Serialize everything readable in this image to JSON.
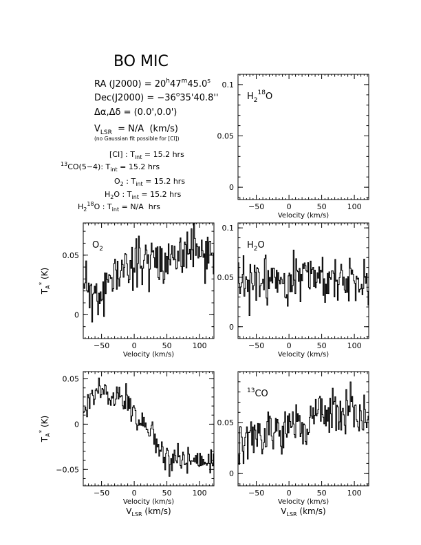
{
  "header": {
    "object_name": "BO MIC",
    "ra_prefix": "RA (J2000) = ",
    "ra_h": "20",
    "ra_m": "47",
    "ra_s": "45.0",
    "dec_prefix": "Dec(J2000) = ",
    "dec_d": "−36",
    "dec_m": "35",
    "dec_s": "40.8",
    "offset_label": "Δα,Δδ = ",
    "offset_value": "(0.0',0.0')",
    "vlsr_value": "= N/A  (km/s)",
    "gauss_note": "(no Gaussian fit possible for [CI])"
  },
  "integration_times": {
    "ci_label": "[CI]",
    "co_label": "CO(5−4):",
    "co_sup": "13",
    "o2_label": "O",
    "o2_sub": "2",
    "h2o_label": "H",
    "h2o_sub": "2",
    "h2o_tail": "O",
    "h218o_label": "H",
    "h218o_sub": "2",
    "h218o_sup": "18",
    "h218o_tail": "O",
    "ci_value": "15.2 hrs",
    "co_value": "15.2 hrs",
    "o2_value": "15.2 hrs",
    "h2o_value": "15.2 hrs",
    "h218o_value": "N/A  hrs"
  },
  "labels": {
    "velocity_xlabel": "Velocity (km/s)",
    "vlsr_xlabel": "(km/s)",
    "ylabel_unit": "(K)"
  },
  "chart_data": [
    {
      "id": "h218o",
      "type": "line",
      "label": "H",
      "label_sub": "2",
      "label_sup": "18",
      "label_tail": "O",
      "xlim": [
        -78,
        122
      ],
      "ylim": [
        -0.012,
        0.11
      ],
      "xticks": [
        -50,
        0,
        50,
        100
      ],
      "yticks": [
        0,
        0.05,
        0.1
      ],
      "ytick_labels": [
        "0",
        "0.05",
        "0.1"
      ],
      "xlabel": "Velocity (km/s)",
      "ylabel": "",
      "second_xlabel": "",
      "seed": 0,
      "x": [],
      "values": []
    },
    {
      "id": "o2",
      "type": "line",
      "label": "O",
      "label_sub": "2",
      "xlim": [
        -78,
        122
      ],
      "ylim": [
        -0.02,
        0.077
      ],
      "xticks": [
        -50,
        0,
        50,
        100
      ],
      "yticks": [
        0,
        0.05
      ],
      "ytick_labels": [
        "0",
        "0.05"
      ],
      "xlabel": "Velocity (km/s)",
      "ylabel": "(K)",
      "second_xlabel": "",
      "seed": 11,
      "x": [
        -78,
        -70,
        -62,
        -55,
        -48,
        -40,
        -30,
        -20,
        -10,
        0,
        10,
        20,
        30,
        40,
        50,
        60,
        70,
        80,
        90,
        100,
        110,
        122
      ],
      "values": [
        0.03,
        0.022,
        0.01,
        0.012,
        0.02,
        0.026,
        0.034,
        0.038,
        0.04,
        0.044,
        0.046,
        0.048,
        0.046,
        0.044,
        0.047,
        0.05,
        0.049,
        0.051,
        0.05,
        0.052,
        0.051,
        0.052
      ],
      "noise": 0.013
    },
    {
      "id": "h2o",
      "type": "line",
      "label": "H",
      "label_sub": "2",
      "label_tail": "O",
      "xlim": [
        -78,
        122
      ],
      "ylim": [
        -0.012,
        0.105
      ],
      "xticks": [
        -50,
        0,
        50,
        100
      ],
      "yticks": [
        0,
        0.05,
        0.1
      ],
      "ytick_labels": [
        "0",
        "0.05",
        "0.1"
      ],
      "xlabel": "Velocity (km/s)",
      "ylabel": "",
      "second_xlabel": "",
      "seed": 23,
      "x": [
        -78,
        -50,
        -20,
        0,
        30,
        60,
        90,
        122
      ],
      "values": [
        0.04,
        0.044,
        0.05,
        0.052,
        0.05,
        0.05,
        0.048,
        0.046
      ],
      "noise": 0.016
    },
    {
      "id": "ci",
      "type": "line",
      "label": "",
      "xlim": [
        -78,
        122
      ],
      "ylim": [
        -0.068,
        0.058
      ],
      "xticks": [
        -50,
        0,
        50,
        100
      ],
      "yticks": [
        -0.05,
        0,
        0.05
      ],
      "ytick_labels": [
        "−0.05",
        "0",
        "0.05"
      ],
      "xlabel": "Velocity (km/s)",
      "ylabel": "(K)",
      "second_xlabel": "(km/s)",
      "seed": 37,
      "x": [
        -78,
        -65,
        -55,
        -45,
        -35,
        -25,
        -15,
        -5,
        5,
        15,
        25,
        35,
        45,
        55,
        65,
        75,
        85,
        95,
        105,
        115,
        122
      ],
      "values": [
        0.0,
        0.03,
        0.04,
        0.035,
        0.032,
        0.03,
        0.028,
        0.02,
        0.005,
        0.0,
        -0.01,
        -0.02,
        -0.03,
        -0.04,
        -0.04,
        -0.042,
        -0.04,
        -0.04,
        -0.042,
        -0.04,
        -0.04
      ],
      "noise": 0.01
    },
    {
      "id": "co13",
      "type": "line",
      "label": "CO",
      "label_sup": "13",
      "xlim": [
        -78,
        122
      ],
      "ylim": [
        -0.012,
        0.1
      ],
      "xticks": [
        -50,
        0,
        50,
        100
      ],
      "yticks": [
        0,
        0.05
      ],
      "ytick_labels": [
        "0",
        "0.05"
      ],
      "xlabel": "Velocity (km/s)",
      "ylabel": "",
      "second_xlabel": "(km/s)",
      "seed": 51,
      "x": [
        -78,
        -50,
        -20,
        0,
        30,
        60,
        90,
        122
      ],
      "values": [
        0.026,
        0.034,
        0.04,
        0.046,
        0.052,
        0.058,
        0.062,
        0.06
      ],
      "noise": 0.014
    }
  ]
}
